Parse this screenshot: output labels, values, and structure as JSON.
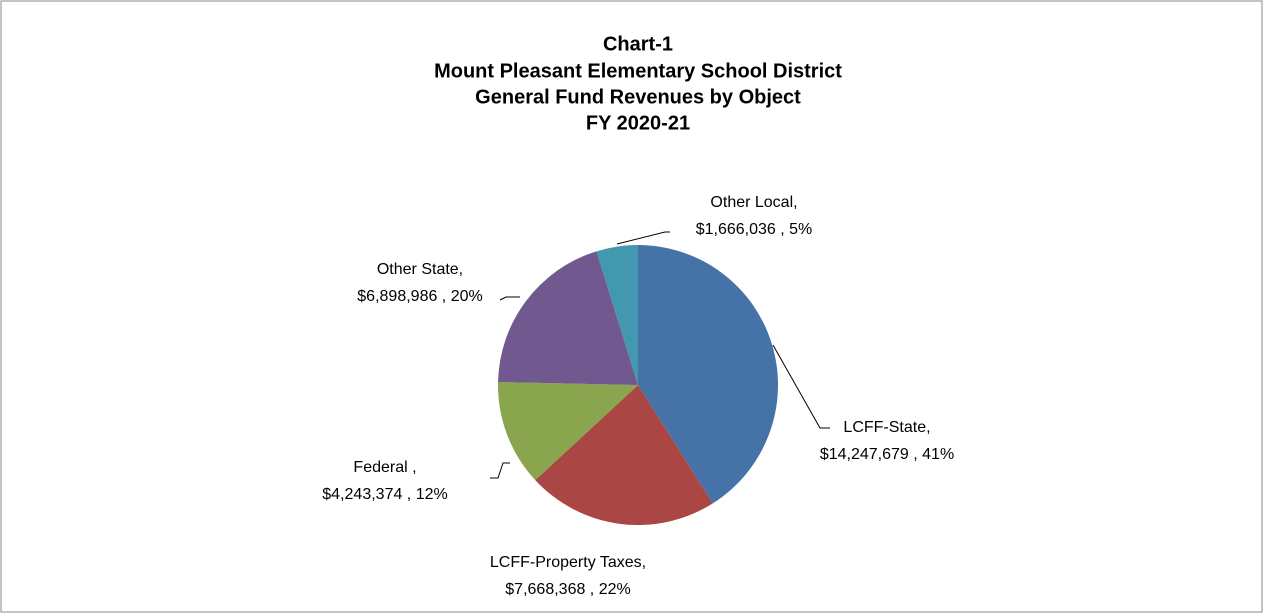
{
  "chart_data": {
    "type": "pie",
    "title": [
      "Chart-1",
      "Mount Pleasant Elementary School District",
      "General Fund Revenues by Object",
      "FY 2020-21"
    ],
    "categories": [
      "LCFF-State,",
      "LCFF-Property Taxes,",
      "Federal ,",
      "Other State,",
      "Other Local,"
    ],
    "values": [
      14247679,
      7668368,
      4243374,
      6898986,
      1666036
    ],
    "value_labels": [
      "$14,247,679 , 41%",
      "$7,668,368 , 22%",
      "$4,243,374 , 12%",
      "$6,898,986 , 20%",
      "$1,666,036 , 5%"
    ],
    "colors": [
      "#4572a7",
      "#aa4643",
      "#89a54e",
      "#71588f",
      "#4198af"
    ]
  }
}
